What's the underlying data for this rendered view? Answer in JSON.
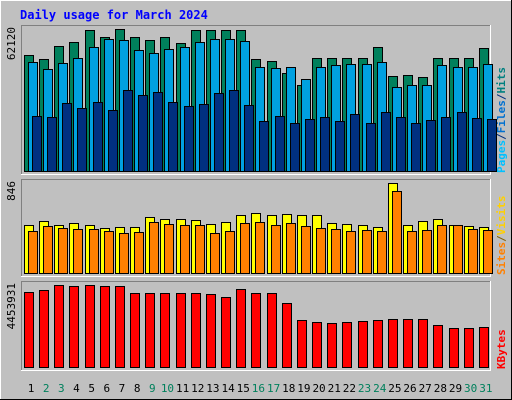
{
  "chart_data": {
    "type": "bar",
    "title": "Daily usage for March 2024",
    "categories": [
      "1",
      "2",
      "3",
      "4",
      "5",
      "6",
      "7",
      "8",
      "9",
      "10",
      "11",
      "12",
      "13",
      "14",
      "15",
      "16",
      "17",
      "18",
      "19",
      "20",
      "21",
      "22",
      "23",
      "24",
      "25",
      "26",
      "27",
      "28",
      "29",
      "30",
      "31"
    ],
    "weekend_days": [
      "2",
      "3",
      "9",
      "10",
      "16",
      "17",
      "23",
      "24",
      "30",
      "31"
    ],
    "panels": [
      {
        "name": "hits-files-pages",
        "max_label": "62120",
        "max": 62120,
        "right_labels": [
          {
            "text": "Pages",
            "color": "#00c0ff"
          },
          {
            "text": "/",
            "color": "#003080"
          },
          {
            "text": "Files",
            "color": "#0070d0"
          },
          {
            "text": "/",
            "color": "#003080"
          },
          {
            "text": "Hits",
            "color": "#008080"
          }
        ],
        "series": [
          {
            "name": "Hits",
            "color": "#00805c",
            "values": [
              50800,
              49000,
              54600,
              56300,
              61600,
              58600,
              62100,
              58500,
              57500,
              58800,
              56100,
              61700,
              61800,
              61600,
              61700,
              49100,
              48400,
              42800,
              37800,
              49400,
              49400,
              49600,
              49600,
              54200,
              41500,
              42200,
              41400,
              49400,
              49600,
              49400,
              53700
            ]
          },
          {
            "name": "Files",
            "color": "#00a0e0",
            "values": [
              47600,
              44800,
              47200,
              49700,
              54200,
              57800,
              57400,
              53000,
              51500,
              53600,
              54300,
              56400,
              57900,
              57800,
              56800,
              45700,
              45300,
              45700,
              40300,
              45700,
              46500,
              46800,
              46800,
              48000,
              37000,
              37800,
              37700,
              46600,
              45500,
              45700,
              47000
            ]
          },
          {
            "name": "Pages",
            "color": "#003080",
            "values": [
              24500,
              23900,
              30000,
              27900,
              30400,
              27000,
              35600,
              33300,
              34800,
              30600,
              28600,
              29400,
              34400,
              35600,
              29100,
              22300,
              24500,
              21200,
              23000,
              24100,
              22100,
              25400,
              21300,
              26100,
              23800,
              21500,
              22400,
              24000,
              26200,
              23300,
              23100
            ]
          }
        ]
      },
      {
        "name": "visits-sites",
        "max_label": "846",
        "max": 846,
        "right_labels": [
          {
            "text": "Sites",
            "color": "#ff8000"
          },
          {
            "text": "/",
            "color": "#806000"
          },
          {
            "text": "Visits",
            "color": "#ffd000"
          }
        ],
        "series": [
          {
            "name": "Visits",
            "color": "#ffff00",
            "values": [
              457,
              495,
              460,
              478,
              459,
              430,
              439,
              436,
              533,
              507,
              507,
              501,
              464,
              481,
              550,
              563,
              545,
              554,
              544,
              548,
              475,
              466,
              458,
              434,
              846,
              455,
              494,
              515,
              460,
              445,
              434
            ]
          },
          {
            "name": "Sites",
            "color": "#ff8000",
            "values": [
              401,
              446,
              426,
              419,
              414,
              398,
              381,
              386,
              485,
              462,
              453,
              452,
              381,
              398,
              478,
              484,
              453,
              471,
              447,
              429,
              417,
              400,
              407,
              401,
              773,
              396,
              408,
              460,
              454,
              421,
              408
            ]
          }
        ]
      },
      {
        "name": "kbytes",
        "max_label": "4453931",
        "max": 4453931,
        "right_labels": [
          {
            "text": "KBytes",
            "color": "#ff0000"
          }
        ],
        "series": [
          {
            "name": "KBytes",
            "color": "#ff0000",
            "values": [
              4070000,
              4160000,
              4450000,
              4420000,
              4430000,
              4420000,
              4420000,
              4010000,
              4020000,
              4030000,
              4020000,
              4030000,
              3990000,
              3800000,
              4220000,
              4040000,
              4020000,
              3480000,
              2570000,
              2450000,
              2420000,
              2470000,
              2510000,
              2590000,
              2650000,
              2650000,
              2620000,
              2290000,
              2150000,
              2150000,
              2200000
            ]
          }
        ]
      }
    ]
  }
}
